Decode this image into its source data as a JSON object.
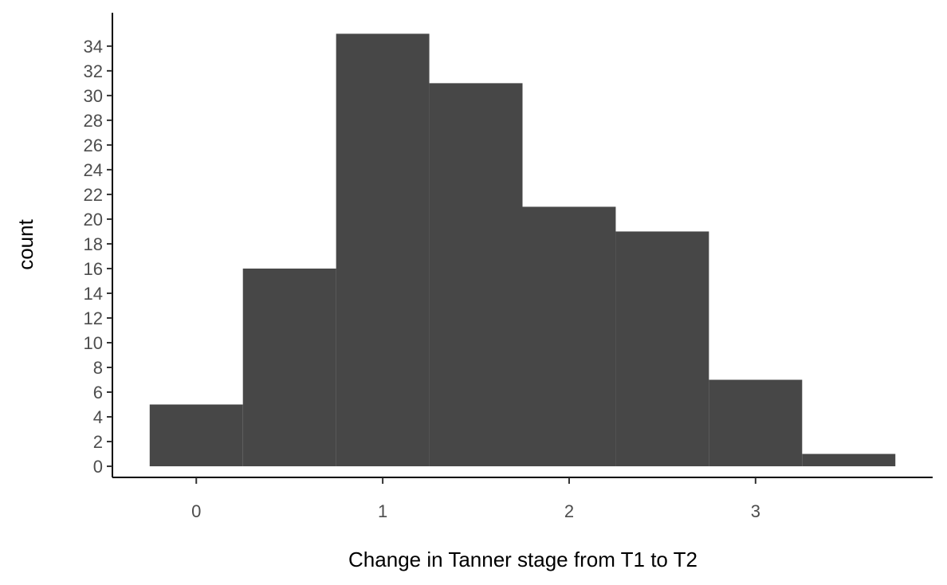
{
  "chart_data": {
    "type": "histogram",
    "bins": [
      {
        "x0": -0.25,
        "x1": 0.25,
        "count": 5
      },
      {
        "x0": 0.25,
        "x1": 0.75,
        "count": 16
      },
      {
        "x0": 0.75,
        "x1": 1.25,
        "count": 35
      },
      {
        "x0": 1.25,
        "x1": 1.75,
        "count": 31
      },
      {
        "x0": 1.75,
        "x1": 2.25,
        "count": 21
      },
      {
        "x0": 2.25,
        "x1": 2.75,
        "count": 19
      },
      {
        "x0": 2.75,
        "x1": 3.25,
        "count": 7
      },
      {
        "x0": 3.25,
        "x1": 3.75,
        "count": 1
      }
    ],
    "xlabel": "Change in Tanner stage from T1 to T2",
    "ylabel": "count",
    "x_ticks": [
      0,
      1,
      2,
      3
    ],
    "y_ticks": [
      0,
      2,
      4,
      6,
      8,
      10,
      12,
      14,
      16,
      18,
      20,
      22,
      24,
      26,
      28,
      30,
      32,
      34
    ],
    "xlim": [
      -0.45,
      3.95
    ],
    "ylim": [
      -0.9,
      36.7
    ],
    "bar_color": "#474747",
    "grid": false,
    "legend": "none"
  }
}
